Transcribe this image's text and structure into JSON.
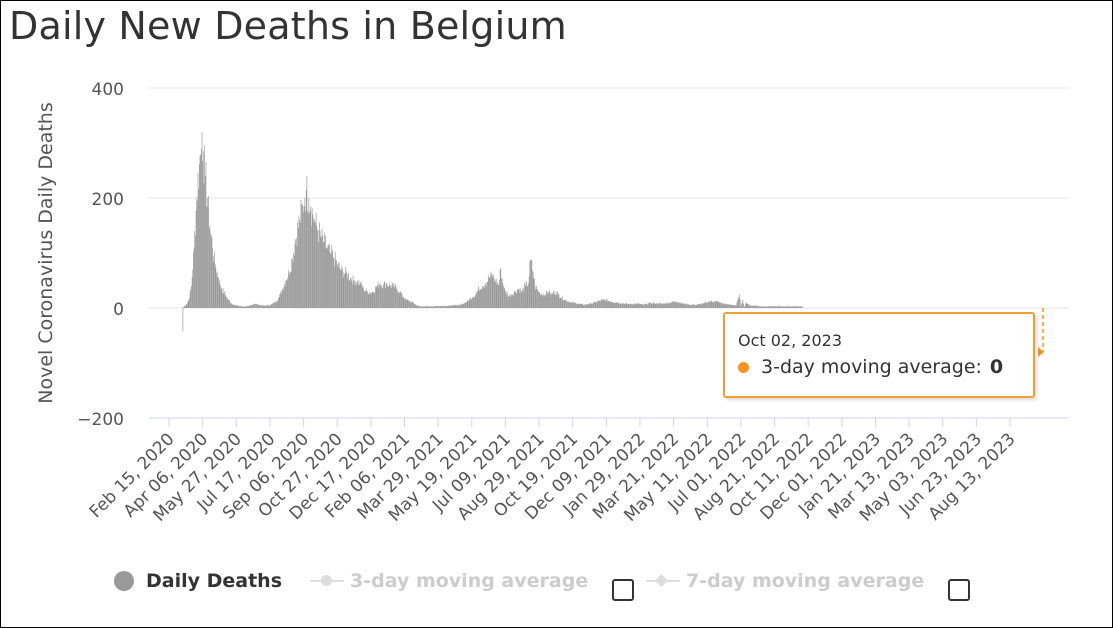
{
  "title": "Daily New Deaths in Belgium",
  "chart_data": {
    "type": "bar",
    "title": "Daily New Deaths in Belgium",
    "ylabel": "Novel Coronavirus Daily Deaths",
    "xlabel": "",
    "ylim": [
      -200,
      400
    ],
    "yticks": [
      400,
      200,
      0,
      -200
    ],
    "ytick_labels": [
      "400",
      "200",
      "0",
      "−200"
    ],
    "x_range": [
      "2020-02-15",
      "2023-10-02"
    ],
    "x_tick_labels": [
      "Feb 15, 2020",
      "Apr 06, 2020",
      "May 27, 2020",
      "Jul 17, 2020",
      "Sep 06, 2020",
      "Oct 27, 2020",
      "Dec 17, 2020",
      "Feb 06, 2021",
      "Mar 29, 2021",
      "May 19, 2021",
      "Jul 09, 2021",
      "Aug 29, 2021",
      "Oct 19, 2021",
      "Dec 09, 2021",
      "Jan 29, 2022",
      "Mar 21, 2022",
      "May 11, 2022",
      "Jul 01, 2022",
      "Aug 21, 2022",
      "Oct 11, 2022",
      "Dec 01, 2022",
      "Jan 21, 2023",
      "Mar 13, 2023",
      "May 03, 2023",
      "Jun 23, 2023",
      "Aug 13, 2023"
    ],
    "series": [
      {
        "name": "Daily Deaths",
        "color": "#999999",
        "visible": true,
        "keypoints": [
          [
            0,
            0
          ],
          [
            20,
            0
          ],
          [
            21,
            -42
          ],
          [
            22,
            2
          ],
          [
            26,
            6
          ],
          [
            30,
            15
          ],
          [
            34,
            40
          ],
          [
            38,
            110
          ],
          [
            42,
            200
          ],
          [
            46,
            262
          ],
          [
            49,
            290
          ],
          [
            50,
            320
          ],
          [
            52,
            285
          ],
          [
            55,
            240
          ],
          [
            58,
            200
          ],
          [
            62,
            150
          ],
          [
            66,
            110
          ],
          [
            70,
            80
          ],
          [
            75,
            55
          ],
          [
            80,
            35
          ],
          [
            85,
            25
          ],
          [
            90,
            15
          ],
          [
            95,
            8
          ],
          [
            100,
            5
          ],
          [
            110,
            3
          ],
          [
            120,
            3
          ],
          [
            130,
            8
          ],
          [
            135,
            6
          ],
          [
            145,
            4
          ],
          [
            155,
            6
          ],
          [
            162,
            12
          ],
          [
            167,
            20
          ],
          [
            172,
            35
          ],
          [
            177,
            50
          ],
          [
            182,
            65
          ],
          [
            187,
            90
          ],
          [
            192,
            125
          ],
          [
            198,
            160
          ],
          [
            203,
            185
          ],
          [
            206,
            200
          ],
          [
            208,
            215
          ],
          [
            212,
            200
          ],
          [
            215,
            185
          ],
          [
            218,
            170
          ],
          [
            222,
            155
          ],
          [
            226,
            142
          ],
          [
            230,
            130
          ],
          [
            235,
            120
          ],
          [
            240,
            108
          ],
          [
            245,
            98
          ],
          [
            250,
            92
          ],
          [
            255,
            80
          ],
          [
            260,
            70
          ],
          [
            265,
            65
          ],
          [
            270,
            62
          ],
          [
            275,
            55
          ],
          [
            280,
            50
          ],
          [
            285,
            48
          ],
          [
            290,
            45
          ],
          [
            295,
            35
          ],
          [
            300,
            30
          ],
          [
            305,
            28
          ],
          [
            310,
            30
          ],
          [
            315,
            40
          ],
          [
            320,
            45
          ],
          [
            325,
            42
          ],
          [
            330,
            45
          ],
          [
            335,
            40
          ],
          [
            340,
            40
          ],
          [
            345,
            35
          ],
          [
            350,
            30
          ],
          [
            355,
            20
          ],
          [
            360,
            15
          ],
          [
            365,
            12
          ],
          [
            370,
            10
          ],
          [
            375,
            5
          ],
          [
            380,
            3
          ],
          [
            400,
            3
          ],
          [
            420,
            4
          ],
          [
            430,
            5
          ],
          [
            440,
            5
          ],
          [
            450,
            10
          ],
          [
            455,
            15
          ],
          [
            460,
            20
          ],
          [
            465,
            25
          ],
          [
            470,
            35
          ],
          [
            475,
            40
          ],
          [
            480,
            45
          ],
          [
            485,
            55
          ],
          [
            490,
            60
          ],
          [
            495,
            50
          ],
          [
            500,
            42
          ],
          [
            503,
            72
          ],
          [
            506,
            45
          ],
          [
            510,
            30
          ],
          [
            515,
            22
          ],
          [
            520,
            25
          ],
          [
            525,
            30
          ],
          [
            530,
            35
          ],
          [
            535,
            30
          ],
          [
            540,
            40
          ],
          [
            545,
            45
          ],
          [
            548,
            88
          ],
          [
            552,
            65
          ],
          [
            555,
            40
          ],
          [
            560,
            30
          ],
          [
            565,
            25
          ],
          [
            570,
            25
          ],
          [
            575,
            30
          ],
          [
            580,
            25
          ],
          [
            585,
            30
          ],
          [
            590,
            25
          ],
          [
            600,
            15
          ],
          [
            610,
            10
          ],
          [
            620,
            8
          ],
          [
            630,
            6
          ],
          [
            640,
            8
          ],
          [
            650,
            12
          ],
          [
            660,
            15
          ],
          [
            670,
            12
          ],
          [
            680,
            10
          ],
          [
            690,
            8
          ],
          [
            700,
            7
          ],
          [
            710,
            8
          ],
          [
            720,
            6
          ],
          [
            730,
            9
          ],
          [
            740,
            8
          ],
          [
            750,
            8
          ],
          [
            760,
            10
          ],
          [
            770,
            12
          ],
          [
            780,
            8
          ],
          [
            790,
            6
          ],
          [
            800,
            6
          ],
          [
            810,
            8
          ],
          [
            820,
            12
          ],
          [
            830,
            12
          ],
          [
            840,
            8
          ],
          [
            850,
            6
          ],
          [
            860,
            5
          ],
          [
            865,
            25
          ],
          [
            867,
            3
          ],
          [
            870,
            15
          ],
          [
            872,
            2
          ],
          [
            875,
            10
          ],
          [
            880,
            5
          ],
          [
            885,
            4
          ],
          [
            890,
            5
          ],
          [
            895,
            3
          ],
          [
            900,
            3
          ],
          [
            960,
            3
          ]
        ]
      },
      {
        "name": "3-day moving average",
        "visible": false
      },
      {
        "name": "7-day moving average",
        "visible": false
      }
    ],
    "tooltip": {
      "date": "Oct 02, 2023",
      "series": "3-day moving average",
      "value": 0
    }
  },
  "legend": {
    "daily": "Daily Deaths",
    "ma3": "3-day moving average",
    "ma7": "7-day moving average"
  },
  "tooltip": {
    "date": "Oct 02, 2023",
    "label": "3-day moving average:",
    "value": "0"
  },
  "colors": {
    "bar": "#999999",
    "accent": "#f7931e",
    "grid": "#e6e6e6"
  }
}
